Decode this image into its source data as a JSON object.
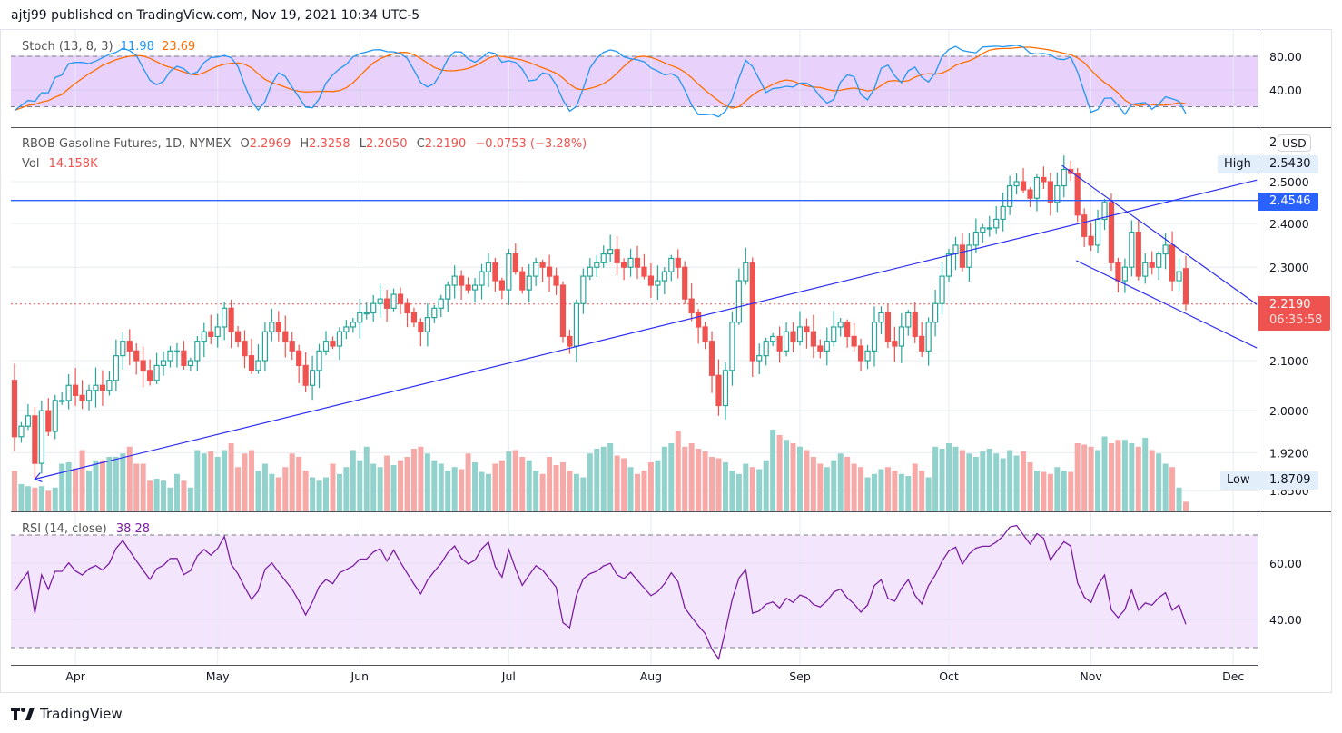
{
  "header": {
    "published": "ajtj99 published on TradingView.com, Nov 19, 2021 10:34 UTC-5"
  },
  "stoch": {
    "label": "Stoch (13, 8, 3)",
    "k_value": "11.98",
    "d_value": "23.69",
    "k_color": "#2196f3",
    "d_color": "#ff6d00",
    "ticks": [
      "80.00",
      "40.00"
    ],
    "bands": [
      80,
      20
    ]
  },
  "legend": {
    "symbol": "RBOB Gasoline Futures, 1D, NYMEX",
    "o_label": "O",
    "o": "2.2969",
    "h_label": "H",
    "h": "2.3258",
    "l_label": "L",
    "l": "2.2050",
    "c_label": "C",
    "c": "2.2190",
    "change": "−0.0753 (−3.28%)",
    "vol_label": "Vol",
    "vol": "14.158K"
  },
  "price_axis": {
    "currency": "USD",
    "truncated_tick": "2",
    "ticks": [
      "2.5000",
      "2.4000",
      "2.3000",
      "2.1000",
      "2.0000",
      "1.9200",
      "1.8500"
    ],
    "high_label": "High",
    "high_value": "2.5430",
    "level_value": "2.4546",
    "last_value": "2.2190",
    "countdown": "06:35:58",
    "low_label": "Low",
    "low_value": "1.8709"
  },
  "rsi": {
    "label": "RSI (14, close)",
    "value": "38.28",
    "color": "#7b1fa2",
    "ticks": [
      "60.00",
      "40.00"
    ],
    "bands": [
      70,
      30
    ]
  },
  "time_axis": {
    "months": [
      {
        "label": "Apr",
        "index": 9
      },
      {
        "label": "May",
        "index": 30
      },
      {
        "label": "Jun",
        "index": 51
      },
      {
        "label": "Jul",
        "index": 73
      },
      {
        "label": "Aug",
        "index": 94
      },
      {
        "label": "Sep",
        "index": 116
      },
      {
        "label": "Oct",
        "index": 138
      },
      {
        "label": "Nov",
        "index": 159
      },
      {
        "label": "Dec",
        "index": 180
      }
    ]
  },
  "footer": {
    "brand": "TradingView"
  },
  "chart_data": {
    "type": "candlestick",
    "title": "RBOB Gasoline Futures, 1D, NYMEX",
    "note": "open = previous close",
    "first_open": 2.06,
    "closes": [
      1.95,
      1.97,
      1.99,
      1.9,
      2.0,
      1.96,
      2.02,
      2.02,
      2.05,
      2.03,
      2.02,
      2.04,
      2.05,
      2.04,
      2.06,
      2.11,
      2.14,
      2.12,
      2.1,
      2.08,
      2.06,
      2.09,
      2.1,
      2.12,
      2.12,
      2.09,
      2.1,
      2.14,
      2.16,
      2.15,
      2.17,
      2.21,
      2.16,
      2.14,
      2.11,
      2.08,
      2.1,
      2.16,
      2.18,
      2.16,
      2.14,
      2.12,
      2.09,
      2.05,
      2.08,
      2.12,
      2.14,
      2.13,
      2.16,
      2.17,
      2.18,
      2.2,
      2.2,
      2.22,
      2.23,
      2.21,
      2.24,
      2.22,
      2.2,
      2.18,
      2.16,
      2.19,
      2.21,
      2.23,
      2.26,
      2.28,
      2.26,
      2.25,
      2.26,
      2.29,
      2.31,
      2.27,
      2.25,
      2.33,
      2.29,
      2.25,
      2.28,
      2.31,
      2.3,
      2.28,
      2.26,
      2.15,
      2.13,
      2.22,
      2.28,
      2.3,
      2.31,
      2.33,
      2.34,
      2.31,
      2.3,
      2.32,
      2.3,
      2.28,
      2.26,
      2.27,
      2.29,
      2.32,
      2.3,
      2.23,
      2.2,
      2.17,
      2.14,
      2.07,
      2.01,
      2.08,
      2.18,
      2.27,
      2.31,
      2.1,
      2.11,
      2.14,
      2.15,
      2.12,
      2.16,
      2.14,
      2.17,
      2.16,
      2.13,
      2.12,
      2.14,
      2.17,
      2.18,
      2.15,
      2.13,
      2.1,
      2.12,
      2.18,
      2.2,
      2.14,
      2.13,
      2.17,
      2.2,
      2.15,
      2.12,
      2.18,
      2.22,
      2.28,
      2.33,
      2.35,
      2.3,
      2.35,
      2.38,
      2.39,
      2.39,
      2.41,
      2.44,
      2.49,
      2.5,
      2.48,
      2.46,
      2.51,
      2.5,
      2.45,
      2.49,
      2.53,
      2.52,
      2.42,
      2.37,
      2.35,
      2.41,
      2.45,
      2.31,
      2.27,
      2.3,
      2.38,
      2.28,
      2.31,
      2.3,
      2.33,
      2.35,
      2.27,
      2.29,
      2.219
    ],
    "volume_k": [
      60,
      40,
      37,
      35,
      37,
      30,
      35,
      70,
      72,
      63,
      90,
      60,
      75,
      75,
      80,
      80,
      85,
      95,
      70,
      70,
      45,
      48,
      45,
      35,
      55,
      45,
      35,
      90,
      85,
      88,
      80,
      90,
      100,
      65,
      85,
      90,
      60,
      70,
      55,
      50,
      65,
      85,
      80,
      60,
      50,
      45,
      50,
      70,
      55,
      65,
      90,
      75,
      95,
      70,
      65,
      82,
      68,
      75,
      80,
      92,
      95,
      85,
      75,
      70,
      60,
      65,
      62,
      85,
      72,
      58,
      55,
      70,
      75,
      88,
      90,
      80,
      75,
      60,
      55,
      80,
      68,
      72,
      60,
      55,
      50,
      85,
      92,
      95,
      100,
      82,
      78,
      65,
      55,
      60,
      72,
      75,
      95,
      100,
      118,
      95,
      100,
      92,
      88,
      80,
      78,
      72,
      60,
      55,
      70,
      65,
      62,
      75,
      120,
      112,
      105,
      100,
      95,
      90,
      80,
      70,
      65,
      75,
      85,
      80,
      70,
      65,
      50,
      55,
      62,
      65,
      60,
      55,
      52,
      70,
      60,
      50,
      95,
      92,
      100,
      95,
      90,
      85,
      80,
      88,
      92,
      85,
      78,
      90,
      82,
      88,
      72,
      60,
      58,
      55,
      65,
      60,
      58,
      100,
      98,
      95,
      90,
      110,
      100,
      105,
      105,
      100,
      95,
      108,
      90,
      85,
      70,
      65,
      35,
      14.158
    ],
    "horizontal_level": 2.4546,
    "trendlines": [
      {
        "name": "support-trendline",
        "from": [
          3,
          1.871
        ],
        "to": [
          183.5,
          2.504
        ]
      },
      {
        "name": "channel-upper-line",
        "from": [
          154.7,
          2.54
        ],
        "to": [
          183.5,
          2.218
        ]
      },
      {
        "name": "channel-lower-line",
        "from": [
          156.8,
          2.315
        ],
        "to": [
          183.5,
          2.126
        ]
      }
    ],
    "up_color": "#26a69a",
    "down_color": "#ef5350"
  }
}
